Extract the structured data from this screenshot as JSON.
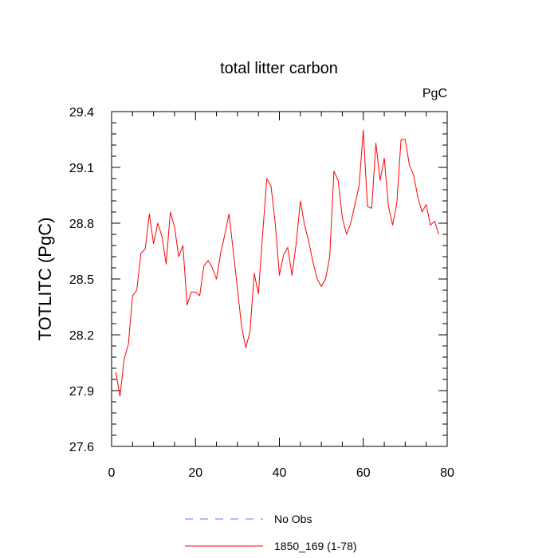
{
  "chart_data": {
    "type": "line",
    "title": "total litter carbon",
    "units_label": "PgC",
    "ylabel": "TOTLITC  (PgC)",
    "xlabel": "",
    "xlim": [
      0,
      80
    ],
    "ylim": [
      27.6,
      29.4
    ],
    "xticks": [
      0,
      20,
      40,
      60,
      80
    ],
    "xtick_labels": [
      "0",
      "20",
      "40",
      "60",
      "80"
    ],
    "yticks": [
      27.6,
      27.9,
      28.2,
      28.5,
      28.8,
      29.1,
      29.4
    ],
    "ytick_labels": [
      "27.6",
      "27.9",
      "28.2",
      "28.5",
      "28.8",
      "29.1",
      "29.4"
    ],
    "legend": [
      {
        "label": "No Obs",
        "color": "#7070ff",
        "dash": true
      },
      {
        "label": "1850_169 (1-78)",
        "color": "#ff0000",
        "dash": false
      }
    ],
    "series": [
      {
        "name": "1850_169 (1-78)",
        "color": "#ff0000",
        "x": [
          1,
          2,
          3,
          4,
          5,
          6,
          7,
          8,
          9,
          10,
          11,
          12,
          13,
          14,
          15,
          16,
          17,
          18,
          19,
          20,
          21,
          22,
          23,
          24,
          25,
          26,
          27,
          28,
          29,
          30,
          31,
          32,
          33,
          34,
          35,
          36,
          37,
          38,
          39,
          40,
          41,
          42,
          43,
          44,
          45,
          46,
          47,
          48,
          49,
          50,
          51,
          52,
          53,
          54,
          55,
          56,
          57,
          58,
          59,
          60,
          61,
          62,
          63,
          64,
          65,
          66,
          67,
          68,
          69,
          70,
          71,
          72,
          73,
          74,
          75,
          76,
          77,
          78
        ],
        "y": [
          28.0,
          27.87,
          28.07,
          28.15,
          28.41,
          28.44,
          28.64,
          28.66,
          28.85,
          28.69,
          28.8,
          28.73,
          28.58,
          28.86,
          28.78,
          28.62,
          28.68,
          28.36,
          28.43,
          28.43,
          28.41,
          28.57,
          28.6,
          28.56,
          28.5,
          28.64,
          28.74,
          28.85,
          28.65,
          28.45,
          28.24,
          28.13,
          28.22,
          28.53,
          28.42,
          28.74,
          29.04,
          29.0,
          28.8,
          28.52,
          28.63,
          28.67,
          28.52,
          28.69,
          28.92,
          28.79,
          28.7,
          28.59,
          28.5,
          28.46,
          28.5,
          28.62,
          29.08,
          29.03,
          28.83,
          28.74,
          28.8,
          28.9,
          29.0,
          29.3,
          28.89,
          28.88,
          29.23,
          29.03,
          29.15,
          28.89,
          28.79,
          28.91,
          29.25,
          29.25,
          29.11,
          29.06,
          28.94,
          28.86,
          28.9,
          28.79,
          28.81,
          28.74
        ]
      }
    ]
  }
}
